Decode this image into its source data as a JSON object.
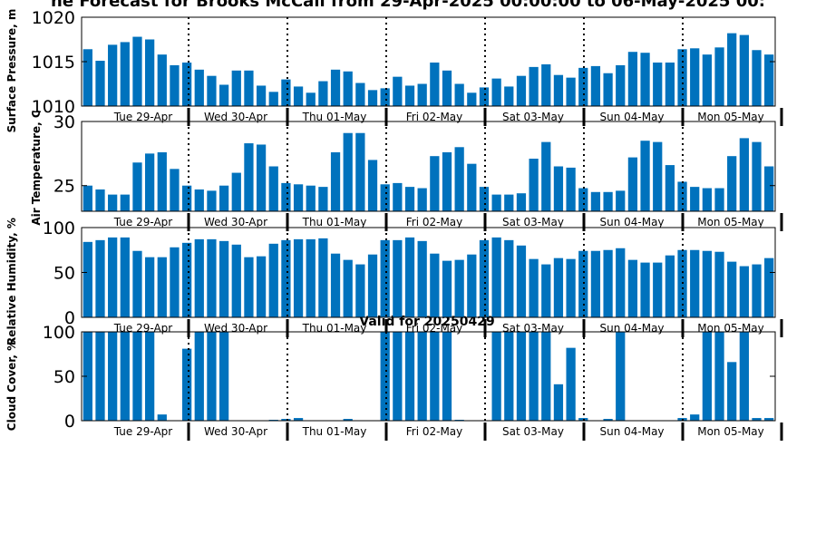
{
  "title": "ne Forecast for Brooks McCall from 29-Apr-2025 00:00:00 to 06-May-2025 00:",
  "valid_label": "Valid for 20250429",
  "colors": {
    "bar": "#0072bd",
    "axis": "#000000",
    "divider": "#000000"
  },
  "day_labels": [
    "Tue 29-Apr",
    "Wed 30-Apr",
    "Thu 01-May",
    "Fri 02-May",
    "Sat 03-May",
    "Sun 04-May",
    "Mon 05-May"
  ],
  "chart_data": [
    {
      "type": "bar",
      "ylabel": "Surface Pressure, m",
      "ylim": [
        1010,
        1020
      ],
      "yticks": [
        "1010",
        "1015",
        "1020"
      ],
      "values": [
        1016.4,
        1015.1,
        1016.9,
        1017.2,
        1017.8,
        1017.5,
        1015.8,
        1014.6,
        1014.9,
        1014.1,
        1013.4,
        1012.4,
        1014.0,
        1014.0,
        1012.3,
        1011.6,
        1013.0,
        1012.2,
        1011.5,
        1012.8,
        1014.1,
        1013.9,
        1012.6,
        1011.8,
        1012.0,
        1013.3,
        1012.3,
        1012.5,
        1014.9,
        1014.0,
        1012.5,
        1011.5,
        1012.1,
        1013.1,
        1012.2,
        1013.4,
        1014.4,
        1014.7,
        1013.5,
        1013.2,
        1014.3,
        1014.5,
        1013.7,
        1014.6,
        1016.1,
        1016.0,
        1014.9,
        1014.9,
        1016.4,
        1016.5,
        1015.8,
        1016.6,
        1018.2,
        1018.0,
        1016.3,
        1015.8
      ]
    },
    {
      "type": "bar",
      "ylabel": "Air Temperature, C",
      "ylim": [
        23,
        30
      ],
      "yticks": [
        "25",
        "30"
      ],
      "values": [
        25.0,
        24.7,
        24.3,
        24.3,
        26.8,
        27.5,
        27.6,
        26.3,
        25.0,
        24.7,
        24.6,
        25.0,
        26.0,
        28.3,
        28.2,
        26.5,
        25.2,
        25.1,
        25.0,
        24.9,
        27.6,
        29.1,
        29.1,
        27.0,
        25.1,
        25.2,
        24.9,
        24.8,
        27.3,
        27.6,
        28.0,
        26.7,
        24.9,
        24.3,
        24.3,
        24.4,
        27.1,
        28.4,
        26.5,
        26.4,
        24.8,
        24.5,
        24.5,
        24.6,
        27.2,
        28.5,
        28.4,
        26.6,
        25.3,
        24.9,
        24.8,
        24.8,
        27.3,
        28.7,
        28.4,
        26.5
      ]
    },
    {
      "type": "bar",
      "ylabel": "Relative Humidity, %",
      "ylim": [
        0,
        100
      ],
      "yticks": [
        "0",
        "50",
        "100"
      ],
      "values": [
        84,
        86,
        89,
        89,
        74,
        67,
        67,
        78,
        83,
        87,
        87,
        85,
        81,
        67,
        68,
        82,
        86,
        87,
        87,
        88,
        71,
        64,
        59,
        70,
        86,
        86,
        89,
        85,
        71,
        63,
        64,
        70,
        86,
        89,
        86,
        80,
        65,
        59,
        66,
        65,
        74,
        74,
        75,
        77,
        64,
        61,
        61,
        69,
        75,
        75,
        74,
        73,
        62,
        57,
        59,
        66
      ]
    },
    {
      "type": "bar",
      "ylabel": "Cloud Cover, %",
      "ylim": [
        0,
        100
      ],
      "yticks": [
        "0",
        "50",
        "100"
      ],
      "values": [
        100,
        100,
        100,
        100,
        100,
        100,
        7,
        0,
        81,
        100,
        100,
        100,
        0,
        0,
        0,
        1,
        2,
        3,
        0,
        0,
        0,
        2,
        0,
        0,
        100,
        100,
        100,
        100,
        100,
        100,
        1,
        0,
        0,
        100,
        100,
        100,
        100,
        100,
        41,
        82,
        3,
        0,
        2,
        100,
        0,
        0,
        0,
        0,
        3,
        7,
        100,
        100,
        66,
        100,
        3,
        3
      ]
    }
  ]
}
